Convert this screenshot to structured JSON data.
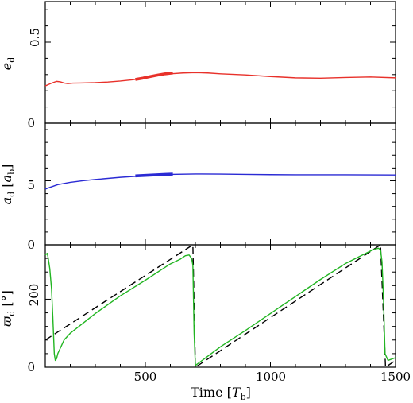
{
  "chart_data": [
    {
      "type": "line",
      "id": "e",
      "ylabel_main": "e",
      "ylabel_sub": "d",
      "ylabel_unit": "",
      "xlim": [
        100,
        1500
      ],
      "ylim": [
        0,
        0.75
      ],
      "yticks": [
        0,
        0.5
      ],
      "ytick_labels": [
        "0",
        "0.5"
      ],
      "series": [
        {
          "color": "#e8312a",
          "style": "solid",
          "x": [
            100,
            115,
            130,
            145,
            160,
            175,
            190,
            210,
            240,
            300,
            350,
            400,
            450,
            500,
            550,
            600,
            650,
            700,
            750,
            800,
            900,
            1000,
            1100,
            1200,
            1300,
            1400,
            1500
          ],
          "y": [
            0.23,
            0.24,
            0.25,
            0.258,
            0.255,
            0.248,
            0.244,
            0.247,
            0.248,
            0.25,
            0.254,
            0.26,
            0.268,
            0.28,
            0.295,
            0.305,
            0.31,
            0.312,
            0.31,
            0.305,
            0.298,
            0.288,
            0.28,
            0.278,
            0.282,
            0.285,
            0.28
          ]
        },
        {
          "color": "#e8312a",
          "style": "thick",
          "x": [
            460,
            490,
            520,
            550,
            580,
            610
          ],
          "y": [
            0.27,
            0.278,
            0.288,
            0.297,
            0.305,
            0.31
          ]
        }
      ]
    },
    {
      "type": "line",
      "id": "a",
      "ylabel_main": "a",
      "ylabel_sub": "d",
      "ylabel_unit_main": "a",
      "ylabel_unit_sub": "b",
      "xlim": [
        100,
        1500
      ],
      "ylim": [
        0,
        9.5
      ],
      "yticks": [
        0,
        5
      ],
      "ytick_labels": [
        "0",
        "5"
      ],
      "series": [
        {
          "color": "#2a2ad4",
          "style": "solid",
          "x": [
            100,
            120,
            150,
            200,
            250,
            300,
            400,
            500,
            600,
            700,
            800,
            900,
            1000,
            1100,
            1200,
            1300,
            1400,
            1500
          ],
          "y": [
            4.35,
            4.5,
            4.7,
            4.88,
            5.0,
            5.1,
            5.27,
            5.4,
            5.5,
            5.53,
            5.52,
            5.5,
            5.48,
            5.47,
            5.47,
            5.47,
            5.46,
            5.45
          ]
        },
        {
          "color": "#2a2ad4",
          "style": "thick",
          "x": [
            460,
            500,
            540,
            580,
            610
          ],
          "y": [
            5.38,
            5.42,
            5.46,
            5.5,
            5.52
          ]
        }
      ]
    },
    {
      "type": "line",
      "id": "varpi",
      "ylabel_main": "ϖ",
      "ylabel_sub": "d",
      "ylabel_unit": "[°]",
      "xlabel_main": "Time [",
      "xlabel_italic": "T",
      "xlabel_sub": "b",
      "xlabel_end": "]",
      "xlim": [
        100,
        1500
      ],
      "ylim": [
        0,
        360
      ],
      "xticks": [
        500,
        1000,
        1500
      ],
      "xtick_labels": [
        "500",
        "1000",
        "1500"
      ],
      "yticks": [
        0,
        200
      ],
      "ytick_labels": [
        "0",
        "200"
      ],
      "series": [
        {
          "color": "#000000",
          "style": "dashed",
          "x": [
            100,
            690,
            690,
            700,
            1440,
            1440,
            1460,
            1500
          ],
          "y": [
            80,
            360,
            360,
            0,
            360,
            360,
            0,
            20
          ]
        },
        {
          "color": "#22b522",
          "style": "solid",
          "x": [
            100,
            108,
            112,
            118,
            125,
            130,
            136,
            140,
            145,
            150,
            175,
            200,
            300,
            400,
            500,
            600,
            640,
            660,
            675,
            685,
            690,
            695,
            700,
            760,
            800,
            900,
            1000,
            1100,
            1200,
            1300,
            1400,
            1420,
            1432,
            1440,
            1446,
            1452,
            1458,
            1470,
            1500
          ],
          "y": [
            330,
            335,
            320,
            290,
            230,
            150,
            40,
            20,
            25,
            40,
            80,
            100,
            158,
            210,
            256,
            304,
            318,
            328,
            330,
            320,
            300,
            100,
            5,
            38,
            60,
            108,
            158,
            208,
            258,
            305,
            342,
            348,
            350,
            345,
            310,
            200,
            40,
            20,
            28
          ]
        }
      ]
    }
  ]
}
